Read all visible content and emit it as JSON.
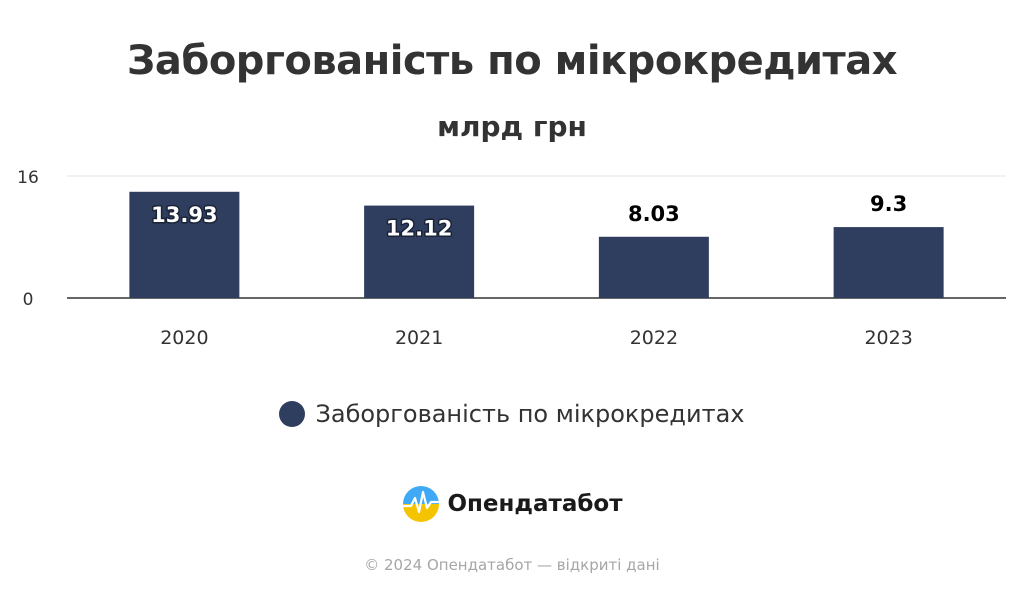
{
  "chart_data": {
    "type": "bar",
    "title": "Заборгованість по мікрокредитах",
    "subtitle": "млрд грн",
    "categories": [
      "2020",
      "2021",
      "2022",
      "2023"
    ],
    "series": [
      {
        "name": "Заборгованість по мікрокредитах",
        "values": [
          13.93,
          12.12,
          8.03,
          9.3
        ],
        "labels": [
          "13.93",
          "12.12",
          "8.03",
          "9.3"
        ],
        "color": "#2f3e5e"
      }
    ],
    "y_ticks": [
      "0",
      "16"
    ],
    "ylim": [
      0,
      16
    ],
    "grid": true,
    "legend_position": "bottom"
  },
  "brand": {
    "name": "Опендатабот",
    "logo_icon": "opendatabot-logo-icon"
  },
  "footer": {
    "text": "© 2024 Опендатабот — відкриті дані"
  },
  "colors": {
    "bar": "#2f3e5e",
    "grid": "#e6e6e6",
    "axis": "#333333"
  }
}
